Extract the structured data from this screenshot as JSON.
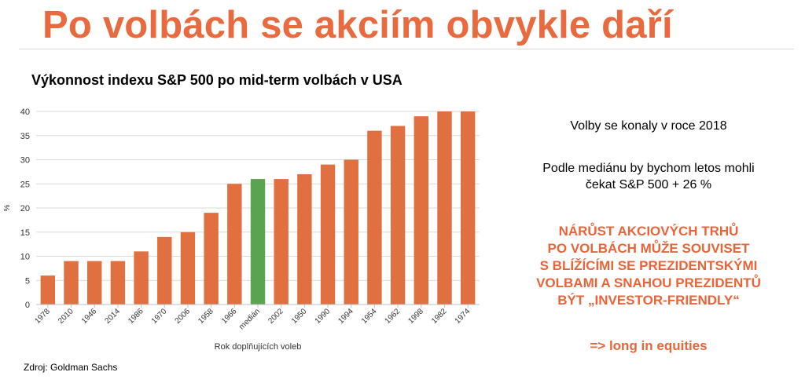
{
  "title": "Po volbách se akciím obvykle daří",
  "chart_title": "Výkonnost indexu S&P 500 po mid-term volbách v USA",
  "source": "Zdroj: Goldman Sachs",
  "notes": {
    "held": "Volby se konaly v roce 2018",
    "median_expectation_1": "Podle mediánu by bychom letos mohli",
    "median_expectation_2": "čekat S&P 500 + 26 %"
  },
  "highlight": "NÁRŮST AKCIOVÝCH TRHŮ\nPO VOLBÁCH MŮŽE SOUVISET\nS BLÍŽÍCÍMI SE PREZIDENTSKÝMI\nVOLBAMI A SNAHOU PREZIDENTŮ\nBÝT „INVESTOR-FRIENDLY“",
  "conclusion": "=> long in equities",
  "colors": {
    "title": "#e86a3e",
    "bar": "#e0703f",
    "median_bar": "#5aa451",
    "highlight": "#e8653a",
    "grid": "#d9d9d9"
  },
  "chart_data": {
    "type": "bar",
    "categories": [
      "1978",
      "2010",
      "1946",
      "2014",
      "1986",
      "1970",
      "2006",
      "1958",
      "1966",
      "medián",
      "2002",
      "1950",
      "1990",
      "1994",
      "1954",
      "1962",
      "1998",
      "1982",
      "1974"
    ],
    "values": [
      6,
      9,
      9,
      9,
      11,
      14,
      15,
      19,
      25,
      26,
      26,
      27,
      29,
      30,
      36,
      37,
      39,
      40,
      40
    ],
    "highlight_category": "medián",
    "title": "Výkonnost indexu S&P 500 po mid-term volbách v USA",
    "xlabel": "Rok doplňujících voleb",
    "ylabel": "%",
    "ylim": [
      0,
      40
    ],
    "yticks": [
      0,
      5,
      10,
      15,
      20,
      25,
      30,
      35,
      40
    ],
    "grid": true
  }
}
